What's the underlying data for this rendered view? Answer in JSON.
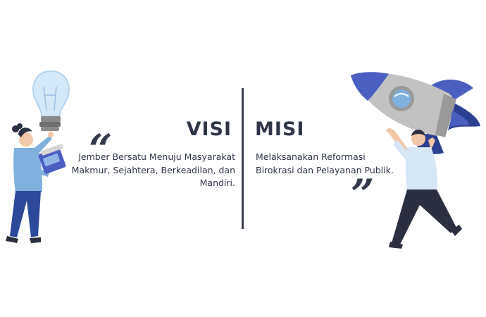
{
  "visi": {
    "title": "VISI",
    "text": "Jember Bersatu Menuju Masyarakat Makmur, Sejahtera, Berkeadilan, dan Mandiri.",
    "quote_open": "“"
  },
  "misi": {
    "title": "MISI",
    "text": "Melaksanakan Reformasi Birokrasi dan Pelayanan Publik.",
    "quote_close": "”"
  },
  "illustrations": {
    "left": "woman-with-lightbulb-illustration",
    "right": "man-with-rocket-illustration"
  },
  "colors": {
    "text": "#2f3547",
    "blue_light": "#7fb0de",
    "blue_dark": "#3f5fbf",
    "navy": "#2d3f8f"
  }
}
